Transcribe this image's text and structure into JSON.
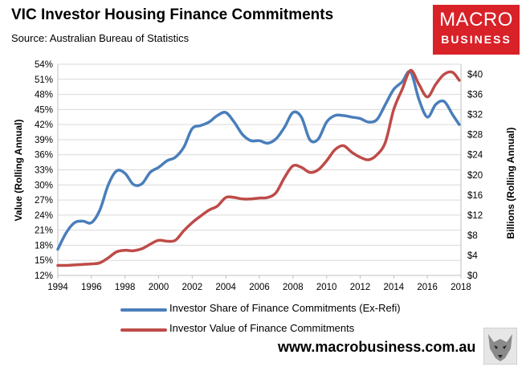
{
  "header": {
    "title": "VIC Investor Housing Finance Commitments",
    "subtitle": "Source: Australian Bureau of Statistics"
  },
  "logo": {
    "line1": "MACRO",
    "line2": "BUSINESS"
  },
  "footer": {
    "website": "www.macrobusiness.com.au"
  },
  "colors": {
    "blue": "#4a7ebb",
    "red": "#be4b48",
    "grid": "#d9d9d9",
    "logo_bg": "#d92128"
  },
  "chart_data": {
    "type": "line",
    "title": "VIC Investor Housing Finance Commitments",
    "xlabel": "",
    "ylabel_left": "Value (Rolling Annual)",
    "ylabel_right": "Billions (Rolling Annual)",
    "xlim": [
      1994,
      2018
    ],
    "ylim_left": [
      12,
      54
    ],
    "ylim_right": [
      0,
      42
    ],
    "x_ticks": [
      "1994",
      "1996",
      "1998",
      "2000",
      "2002",
      "2004",
      "2006",
      "2008",
      "2010",
      "2012",
      "2014",
      "2016",
      "2018"
    ],
    "y_left_ticks": [
      "12%",
      "15%",
      "18%",
      "21%",
      "24%",
      "27%",
      "30%",
      "33%",
      "36%",
      "39%",
      "42%",
      "45%",
      "48%",
      "51%",
      "54%"
    ],
    "y_right_ticks": [
      "$0",
      "$4",
      "$8",
      "$12",
      "$16",
      "$20",
      "$24",
      "$28",
      "$32",
      "$36",
      "$40"
    ],
    "grid": "horizontal",
    "legend": [
      "Investor Share of Finance Commitments (Ex-Refi)",
      "Investor Value of Finance Commitments"
    ],
    "series": [
      {
        "name": "Investor Share of Finance Commitments (Ex-Refi)",
        "axis": "left",
        "color": "#4a7ebb",
        "x": [
          1994,
          1994.5,
          1995,
          1995.5,
          1996,
          1996.5,
          1997,
          1997.5,
          1998,
          1998.5,
          1999,
          1999.5,
          2000,
          2000.5,
          2001,
          2001.5,
          2002,
          2002.5,
          2003,
          2003.5,
          2004,
          2004.5,
          2005,
          2005.5,
          2006,
          2006.5,
          2007,
          2007.5,
          2008,
          2008.5,
          2009,
          2009.5,
          2010,
          2010.5,
          2011,
          2011.5,
          2012,
          2012.5,
          2013,
          2013.5,
          2014,
          2014.5,
          2015,
          2015.5,
          2016,
          2016.5,
          2017,
          2017.5,
          2017.9
        ],
        "values": [
          17.2,
          20.5,
          22.5,
          22.8,
          22.5,
          25.0,
          30.0,
          32.8,
          32.3,
          30.1,
          30.2,
          32.5,
          33.5,
          34.8,
          35.5,
          37.5,
          41.2,
          41.8,
          42.5,
          43.8,
          44.4,
          42.5,
          40.0,
          38.8,
          38.8,
          38.3,
          39.2,
          41.5,
          44.4,
          43.5,
          39.0,
          39.1,
          42.5,
          43.8,
          43.8,
          43.5,
          43.2,
          42.5,
          43.0,
          46.0,
          49.0,
          50.5,
          52.5,
          47.0,
          43.5,
          46.0,
          46.6,
          44.0,
          42.0
        ]
      },
      {
        "name": "Investor Value of Finance Commitments",
        "axis": "right",
        "color": "#be4b48",
        "x": [
          1994,
          1994.5,
          1995,
          1995.5,
          1996,
          1996.5,
          1997,
          1997.5,
          1998,
          1998.5,
          1999,
          1999.5,
          2000,
          2000.5,
          2001,
          2001.5,
          2002,
          2002.5,
          2003,
          2003.5,
          2004,
          2004.5,
          2005,
          2005.5,
          2006,
          2006.5,
          2007,
          2007.5,
          2008,
          2008.5,
          2009,
          2009.5,
          2010,
          2010.5,
          2011,
          2011.5,
          2012,
          2012.5,
          2013,
          2013.5,
          2014,
          2014.5,
          2015,
          2015.5,
          2016,
          2016.5,
          2017,
          2017.5,
          2017.9
        ],
        "values": [
          2.0,
          2.0,
          2.1,
          2.2,
          2.3,
          2.5,
          3.5,
          4.7,
          5.0,
          4.9,
          5.3,
          6.2,
          7.0,
          6.8,
          7.0,
          8.9,
          10.5,
          11.8,
          13.0,
          13.8,
          15.5,
          15.5,
          15.2,
          15.2,
          15.4,
          15.5,
          16.5,
          19.5,
          21.8,
          21.5,
          20.5,
          21.0,
          22.8,
          25.0,
          25.8,
          24.5,
          23.5,
          23.0,
          24.0,
          26.5,
          33.0,
          37.0,
          40.8,
          38.0,
          35.5,
          38.0,
          40.0,
          40.4,
          38.8
        ]
      }
    ]
  }
}
